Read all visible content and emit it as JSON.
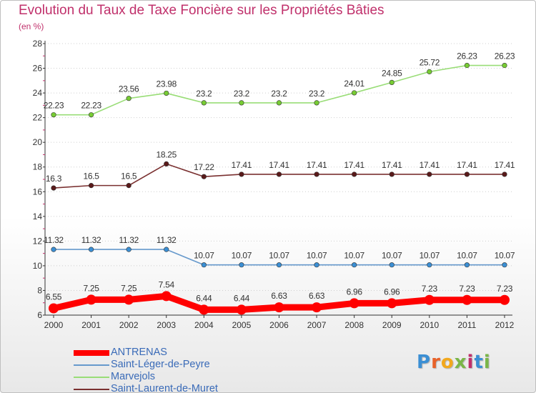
{
  "title": "Evolution du Taux de Taxe Foncière sur les Propriétés Bâties",
  "subtitle": "(en %)",
  "colors": {
    "title": "#c0306b",
    "axis": "#333333",
    "legend_text": "#3a6bb8"
  },
  "logo": {
    "text": "Proxiti",
    "letters": [
      "P",
      "r",
      "o",
      "x",
      "i",
      "t",
      "i"
    ],
    "colors": [
      "#3b8fd4",
      "#e8622a",
      "#f2a81d",
      "#7ab648",
      "#c0306b",
      "#3b8fd4",
      "#7ab648"
    ]
  },
  "chart_data": {
    "type": "line",
    "x": [
      "2000",
      "2001",
      "2002",
      "2003",
      "2004",
      "2005",
      "2006",
      "2007",
      "2008",
      "2009",
      "2010",
      "2011",
      "2012"
    ],
    "ylim": [
      6,
      28
    ],
    "yticks": [
      "6",
      "8",
      "10",
      "12",
      "14",
      "16",
      "18",
      "20",
      "22",
      "24",
      "26",
      "28"
    ],
    "series": [
      {
        "name": "ANTRENAS",
        "color": "#ff0000",
        "thick": true,
        "values": [
          6.55,
          7.25,
          7.25,
          7.54,
          6.44,
          6.44,
          6.63,
          6.63,
          6.96,
          6.96,
          7.23,
          7.23,
          7.23
        ],
        "labels": [
          "6.55",
          "7.25",
          "7.25",
          "7.54",
          "6.44",
          "6.44",
          "6.63",
          "6.63",
          "6.96",
          "6.96",
          "7.23",
          "7.23",
          "7.23"
        ]
      },
      {
        "name": "Saint-Léger-de-Peyre",
        "color": "#6699cc",
        "marker": "#3b8fd4",
        "thick": false,
        "values": [
          11.32,
          11.32,
          11.32,
          11.32,
          10.07,
          10.07,
          10.07,
          10.07,
          10.07,
          10.07,
          10.07,
          10.07,
          10.07
        ],
        "labels": [
          "11.32",
          "11.32",
          "11.32",
          "11.32",
          "10.07",
          "10.07",
          "10.07",
          "10.07",
          "10.07",
          "10.07",
          "10.07",
          "10.07",
          "10.07"
        ]
      },
      {
        "name": "Marvejols",
        "color": "#99dd77",
        "marker": "#77cc33",
        "thick": false,
        "values": [
          22.23,
          22.23,
          23.56,
          23.98,
          23.2,
          23.2,
          23.2,
          23.2,
          24.01,
          24.85,
          25.72,
          26.23,
          26.23
        ],
        "labels": [
          "22.23",
          "22.23",
          "23.56",
          "23.98",
          "23.2",
          "23.2",
          "23.2",
          "23.2",
          "24.01",
          "24.85",
          "25.72",
          "26.23",
          "26.23"
        ]
      },
      {
        "name": "Saint-Laurent-de-Muret",
        "color": "#7a3030",
        "marker": "#5a1a1a",
        "thick": false,
        "values": [
          16.3,
          16.5,
          16.5,
          18.25,
          17.22,
          17.41,
          17.41,
          17.41,
          17.41,
          17.41,
          17.41,
          17.41,
          17.41
        ],
        "labels": [
          "16.3",
          "16.5",
          "16.5",
          "18.25",
          "17.22",
          "17.41",
          "17.41",
          "17.41",
          "17.41",
          "17.41",
          "17.41",
          "17.41",
          "17.41"
        ]
      }
    ]
  }
}
